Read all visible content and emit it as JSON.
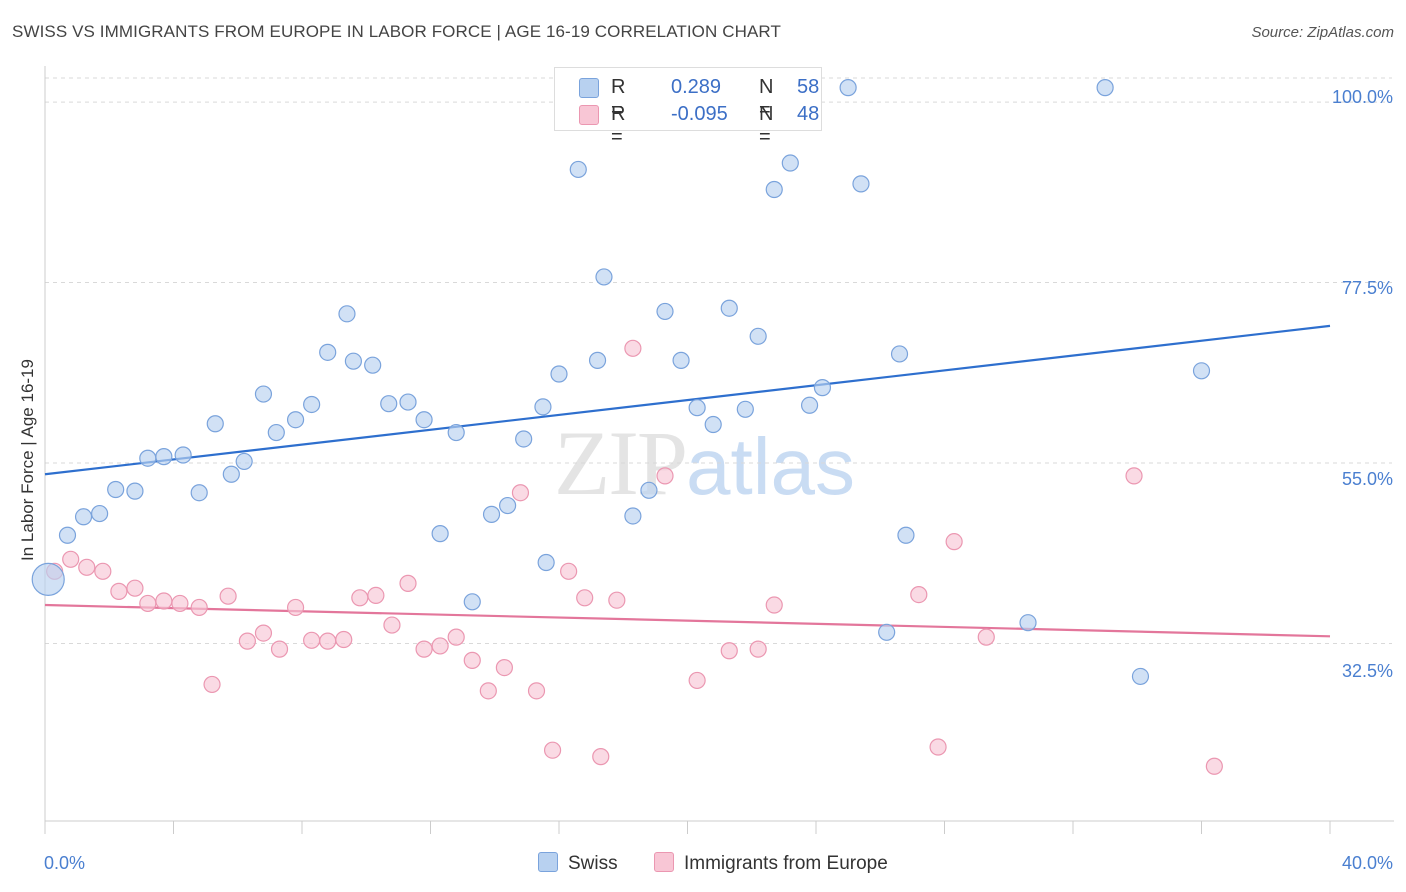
{
  "header": {
    "title": "SWISS VS IMMIGRANTS FROM EUROPE IN LABOR FORCE | AGE 16-19 CORRELATION CHART",
    "source": "Source: ZipAtlas.com"
  },
  "legend": {
    "swiss": {
      "r_label": "R =",
      "r_value": "0.289",
      "n_label": "N =",
      "n_value": "58"
    },
    "europe": {
      "r_label": "R =",
      "r_value": "-0.095",
      "n_label": "N =",
      "n_value": "48"
    }
  },
  "bottom_legend": {
    "swiss": "Swiss",
    "europe": "Immigrants from Europe"
  },
  "watermark": {
    "zip": "ZIP",
    "atlas": "atlas"
  },
  "colors": {
    "swiss_fill": "#b8d1f0",
    "swiss_stroke": "#7aa3dc",
    "swiss_line": "#2e6fce",
    "europe_fill": "#f8c6d5",
    "europe_stroke": "#eb97b1",
    "europe_line": "#e3769b",
    "tick_text": "#4a7fd0",
    "grid": "#d9d9d9"
  },
  "chart_data": {
    "type": "scatter",
    "title": "SWISS VS IMMIGRANTS FROM EUROPE IN LABOR FORCE | AGE 16-19 CORRELATION CHART",
    "xlabel": "",
    "ylabel": "In Labor Force | Age 16-19",
    "xlim": [
      0,
      40
    ],
    "ylim": [
      10.5,
      103
    ],
    "x_tick_labels": [
      "0.0%",
      "40.0%"
    ],
    "y_ticks": [
      32.5,
      55.0,
      77.5,
      100.0
    ],
    "y_tick_labels": [
      "32.5%",
      "55.0%",
      "77.5%",
      "100.0%"
    ],
    "grid": "horizontal dashed",
    "legend_position": "top-center",
    "series": [
      {
        "name": "Swiss",
        "r": 0.289,
        "n": 58,
        "trend": {
          "x": [
            0,
            40
          ],
          "y": [
            53.6,
            72.1
          ]
        },
        "points": [
          {
            "x": 0.1,
            "y": 40.5,
            "big": true
          },
          {
            "x": 0.7,
            "y": 46.0
          },
          {
            "x": 1.2,
            "y": 48.3
          },
          {
            "x": 1.7,
            "y": 48.7
          },
          {
            "x": 2.2,
            "y": 51.7
          },
          {
            "x": 2.8,
            "y": 51.5
          },
          {
            "x": 3.2,
            "y": 55.6
          },
          {
            "x": 3.7,
            "y": 55.8
          },
          {
            "x": 4.3,
            "y": 56.0
          },
          {
            "x": 4.8,
            "y": 51.3
          },
          {
            "x": 5.3,
            "y": 59.9
          },
          {
            "x": 5.8,
            "y": 53.6
          },
          {
            "x": 6.2,
            "y": 55.2
          },
          {
            "x": 6.8,
            "y": 63.6
          },
          {
            "x": 7.2,
            "y": 58.8
          },
          {
            "x": 7.8,
            "y": 60.4
          },
          {
            "x": 8.3,
            "y": 62.3
          },
          {
            "x": 8.8,
            "y": 68.8
          },
          {
            "x": 9.4,
            "y": 73.6
          },
          {
            "x": 9.6,
            "y": 67.7
          },
          {
            "x": 10.2,
            "y": 67.2
          },
          {
            "x": 10.7,
            "y": 62.4
          },
          {
            "x": 11.3,
            "y": 62.6
          },
          {
            "x": 11.8,
            "y": 60.4
          },
          {
            "x": 12.3,
            "y": 46.2
          },
          {
            "x": 12.8,
            "y": 58.8
          },
          {
            "x": 13.3,
            "y": 37.7
          },
          {
            "x": 13.9,
            "y": 48.6
          },
          {
            "x": 14.4,
            "y": 49.7
          },
          {
            "x": 14.9,
            "y": 58.0
          },
          {
            "x": 15.6,
            "y": 42.6
          },
          {
            "x": 16.0,
            "y": 66.1
          },
          {
            "x": 15.5,
            "y": 62.0
          },
          {
            "x": 16.6,
            "y": 91.6
          },
          {
            "x": 17.2,
            "y": 67.8
          },
          {
            "x": 17.4,
            "y": 78.2
          },
          {
            "x": 18.3,
            "y": 48.4
          },
          {
            "x": 18.8,
            "y": 51.6
          },
          {
            "x": 19.3,
            "y": 73.9
          },
          {
            "x": 19.8,
            "y": 67.8
          },
          {
            "x": 20.3,
            "y": 61.9
          },
          {
            "x": 20.8,
            "y": 59.8
          },
          {
            "x": 21.3,
            "y": 74.3
          },
          {
            "x": 21.8,
            "y": 61.7
          },
          {
            "x": 22.2,
            "y": 70.8
          },
          {
            "x": 22.7,
            "y": 89.1
          },
          {
            "x": 23.2,
            "y": 92.4
          },
          {
            "x": 23.8,
            "y": 62.2
          },
          {
            "x": 24.2,
            "y": 64.4
          },
          {
            "x": 25.0,
            "y": 101.8
          },
          {
            "x": 25.4,
            "y": 89.8
          },
          {
            "x": 26.2,
            "y": 33.9
          },
          {
            "x": 26.6,
            "y": 68.6
          },
          {
            "x": 26.8,
            "y": 46.0
          },
          {
            "x": 30.6,
            "y": 35.1
          },
          {
            "x": 33.0,
            "y": 101.8
          },
          {
            "x": 34.1,
            "y": 28.4
          },
          {
            "x": 36.0,
            "y": 66.5
          }
        ]
      },
      {
        "name": "Immigrants from Europe",
        "r": -0.095,
        "n": 48,
        "trend": {
          "x": [
            0,
            40
          ],
          "y": [
            37.3,
            33.4
          ]
        },
        "points": [
          {
            "x": 0.3,
            "y": 41.5
          },
          {
            "x": 0.8,
            "y": 43.0
          },
          {
            "x": 1.3,
            "y": 42.0
          },
          {
            "x": 1.8,
            "y": 41.5
          },
          {
            "x": 2.3,
            "y": 39.0
          },
          {
            "x": 2.8,
            "y": 39.4
          },
          {
            "x": 3.2,
            "y": 37.5
          },
          {
            "x": 3.7,
            "y": 37.8
          },
          {
            "x": 4.2,
            "y": 37.5
          },
          {
            "x": 4.8,
            "y": 37.0
          },
          {
            "x": 5.2,
            "y": 27.4
          },
          {
            "x": 5.7,
            "y": 38.4
          },
          {
            "x": 6.3,
            "y": 32.8
          },
          {
            "x": 6.8,
            "y": 33.8
          },
          {
            "x": 7.3,
            "y": 31.8
          },
          {
            "x": 7.8,
            "y": 37.0
          },
          {
            "x": 8.3,
            "y": 32.9
          },
          {
            "x": 8.8,
            "y": 32.8
          },
          {
            "x": 9.3,
            "y": 33.0
          },
          {
            "x": 9.8,
            "y": 38.2
          },
          {
            "x": 10.3,
            "y": 38.5
          },
          {
            "x": 10.8,
            "y": 34.8
          },
          {
            "x": 11.3,
            "y": 40.0
          },
          {
            "x": 11.8,
            "y": 31.8
          },
          {
            "x": 12.3,
            "y": 32.2
          },
          {
            "x": 12.8,
            "y": 33.3
          },
          {
            "x": 13.3,
            "y": 30.4
          },
          {
            "x": 13.8,
            "y": 26.6
          },
          {
            "x": 14.3,
            "y": 29.5
          },
          {
            "x": 14.8,
            "y": 51.3
          },
          {
            "x": 15.3,
            "y": 26.6
          },
          {
            "x": 15.8,
            "y": 19.2
          },
          {
            "x": 16.3,
            "y": 41.5
          },
          {
            "x": 16.8,
            "y": 38.2
          },
          {
            "x": 17.3,
            "y": 18.4
          },
          {
            "x": 17.8,
            "y": 37.9
          },
          {
            "x": 18.3,
            "y": 69.3
          },
          {
            "x": 19.3,
            "y": 53.4
          },
          {
            "x": 20.3,
            "y": 27.9
          },
          {
            "x": 21.3,
            "y": 31.6
          },
          {
            "x": 22.2,
            "y": 31.8
          },
          {
            "x": 22.7,
            "y": 37.3
          },
          {
            "x": 27.2,
            "y": 38.6
          },
          {
            "x": 27.8,
            "y": 19.6
          },
          {
            "x": 28.3,
            "y": 45.2
          },
          {
            "x": 29.3,
            "y": 33.3
          },
          {
            "x": 33.9,
            "y": 53.4
          },
          {
            "x": 36.4,
            "y": 17.2
          }
        ]
      }
    ]
  }
}
